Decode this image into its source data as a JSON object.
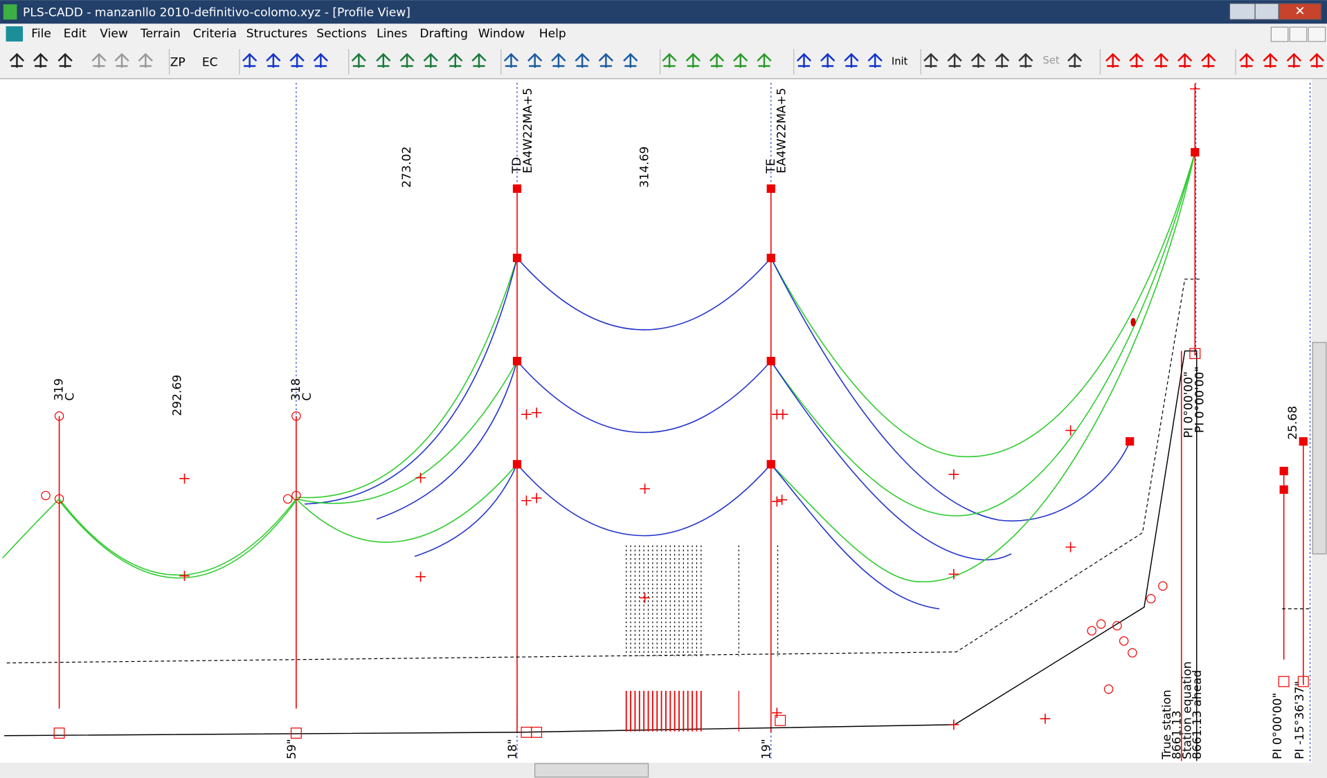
{
  "window": {
    "title": "PLS-CADD - manzanllo 2010-definitivo-colomo.xyz - [Profile View]"
  },
  "menu": [
    "File",
    "Edit",
    "View",
    "Terrain",
    "Criteria",
    "Structures",
    "Sections",
    "Lines",
    "Drafting",
    "Window",
    "Help"
  ],
  "toolbar": {
    "zoom_profile": "ZP",
    "edit_criteria": "EC",
    "init": "Init",
    "set": "Set"
  },
  "profile": {
    "span_labels": [
      292.69,
      273.02,
      314.69,
      25.68
    ],
    "structures": [
      {
        "number": 319,
        "type": "C"
      },
      {
        "number": 318,
        "type": "C"
      },
      {
        "number": "TD",
        "type": "EA4W22MA+5"
      },
      {
        "number": "TE",
        "type": "EA4W22MA+5"
      }
    ],
    "bottom_labels": [
      "59\"",
      "18\"",
      "19\""
    ],
    "station_equation": {
      "true_station": "True station",
      "true_value": 8661.13,
      "equation": "Station equation",
      "ahead": "8661.13 ahead"
    },
    "pi_labels": [
      "PI 0°00'00\"",
      "PI 0°00'00\"",
      "PI 0°00'00\"",
      "PI -15°36'37\""
    ]
  }
}
